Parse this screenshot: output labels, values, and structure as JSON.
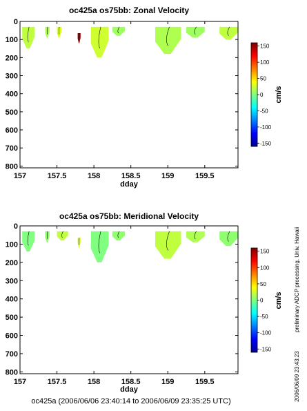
{
  "chart_data": [
    {
      "type": "heatmap",
      "title": "oc425a os75bb: Zonal Velocity",
      "xlabel": "dday",
      "ylabel": "",
      "xlim": [
        157,
        159.95
      ],
      "ylim": [
        810,
        0
      ],
      "x_ticks": [
        "157",
        "157.5",
        "158",
        "158.5",
        "159",
        "159.5"
      ],
      "x_tick_values": [
        157,
        157.5,
        158,
        158.5,
        159,
        159.5
      ],
      "y_ticks": [
        "0",
        "100",
        "200",
        "300",
        "400",
        "500",
        "600",
        "700",
        "800"
      ],
      "y_tick_values": [
        0,
        100,
        200,
        300,
        400,
        500,
        600,
        700,
        800
      ],
      "colorbar": {
        "label": "cm/s",
        "ticks": [
          "150",
          "100",
          "50",
          "0",
          "-50",
          "-100",
          "-150"
        ],
        "tick_values": [
          150,
          100,
          50,
          0,
          -50,
          -100,
          -150
        ],
        "range": [
          -160,
          160
        ]
      },
      "regions": [
        {
          "x": [
            157.03,
            157.2
          ],
          "top": 30,
          "bottom": 150,
          "value": 20
        },
        {
          "x": [
            157.34,
            157.4
          ],
          "top": 30,
          "bottom": 90,
          "value": 15
        },
        {
          "x": [
            157.5,
            157.56
          ],
          "top": 30,
          "bottom": 90,
          "value": 30
        },
        {
          "x": [
            157.78,
            157.82
          ],
          "top": 65,
          "bottom": 120,
          "value": 150
        },
        {
          "x": [
            157.96,
            158.2
          ],
          "top": 30,
          "bottom": 200,
          "value": 25
        },
        {
          "x": [
            158.25,
            158.42
          ],
          "top": 30,
          "bottom": 80,
          "value": 10
        },
        {
          "x": [
            158.83,
            159.18
          ],
          "top": 30,
          "bottom": 180,
          "value": 15
        },
        {
          "x": [
            159.25,
            159.5
          ],
          "top": 30,
          "bottom": 90,
          "value": 10
        },
        {
          "x": [
            159.7,
            159.95
          ],
          "top": 30,
          "bottom": 100,
          "value": 20
        }
      ]
    },
    {
      "type": "heatmap",
      "title": "oc425a os75bb: Meridional Velocity",
      "xlabel": "dday",
      "ylabel": "",
      "xlim": [
        157,
        159.95
      ],
      "ylim": [
        810,
        0
      ],
      "x_ticks": [
        "157",
        "157.5",
        "158",
        "158.5",
        "159",
        "159.5"
      ],
      "x_tick_values": [
        157,
        157.5,
        158,
        158.5,
        159,
        159.5
      ],
      "y_ticks": [
        "0",
        "100",
        "200",
        "300",
        "400",
        "500",
        "600",
        "700",
        "800"
      ],
      "y_tick_values": [
        0,
        100,
        200,
        300,
        400,
        500,
        600,
        700,
        800
      ],
      "colorbar": {
        "label": "cm/s",
        "ticks": [
          "150",
          "100",
          "50",
          "0",
          "-50",
          "-100",
          "-150"
        ],
        "tick_values": [
          150,
          100,
          50,
          0,
          -50,
          -100,
          -150
        ],
        "range": [
          -160,
          160
        ]
      },
      "regions": [
        {
          "x": [
            157.03,
            157.2
          ],
          "top": 30,
          "bottom": 140,
          "value": 0
        },
        {
          "x": [
            157.34,
            157.4
          ],
          "top": 30,
          "bottom": 90,
          "value": 5
        },
        {
          "x": [
            157.5,
            157.65
          ],
          "top": 30,
          "bottom": 80,
          "value": 20
        },
        {
          "x": [
            157.78,
            157.82
          ],
          "top": 65,
          "bottom": 120,
          "value": 30
        },
        {
          "x": [
            157.96,
            158.2
          ],
          "top": 30,
          "bottom": 200,
          "value": 0
        },
        {
          "x": [
            158.25,
            158.42
          ],
          "top": 30,
          "bottom": 80,
          "value": 5
        },
        {
          "x": [
            158.83,
            159.18
          ],
          "top": 30,
          "bottom": 180,
          "value": 20
        },
        {
          "x": [
            159.25,
            159.5
          ],
          "top": 30,
          "bottom": 90,
          "value": 15
        },
        {
          "x": [
            159.7,
            159.95
          ],
          "top": 30,
          "bottom": 110,
          "value": 5
        }
      ]
    }
  ],
  "footer": {
    "time_range": "oc425a (2006/06/06 23:40:14 to 2006/06/09 23:35:25 UTC)",
    "processing": "preliminary ADCP processing,   Univ. Hawaii",
    "timestamp": "2006/06/09 23:43:23"
  },
  "colors": {
    "axis": "#000000",
    "background": "#ffffff"
  }
}
